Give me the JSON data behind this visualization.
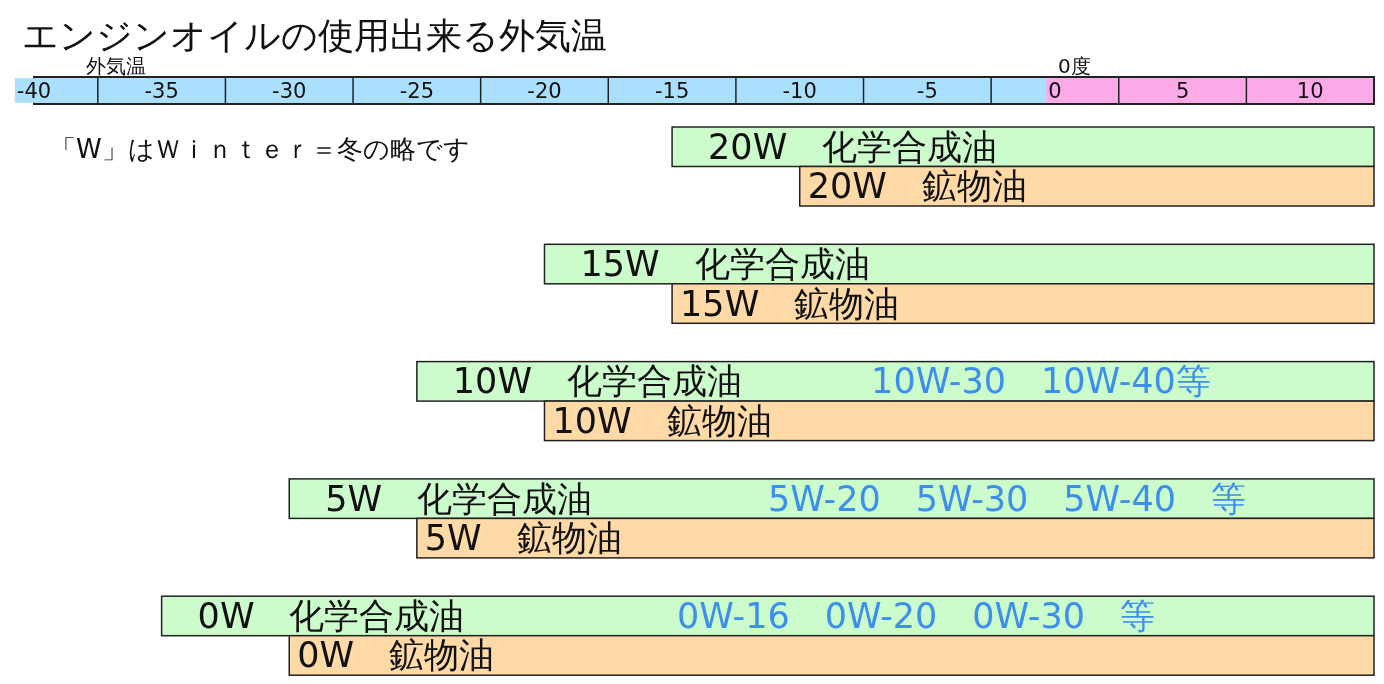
{
  "chart_data": {
    "type": "bar",
    "orientation": "horizontal",
    "title": "エンジンオイルの使用出来る外気温",
    "xlabel": "外気温",
    "categories": [
      "20W　化学合成油",
      "20W　鉱物油",
      "15W　化学合成油",
      "15W　鉱物油",
      "10W　化学合成油",
      "10W　鉱物油",
      "5W　化学合成油",
      "5W　鉱物油",
      "0W　化学合成油",
      "0W　鉱物油"
    ],
    "base": [
      -15,
      -10,
      -20,
      -15,
      -25,
      -20,
      -30,
      -25,
      -35,
      -30
    ],
    "values": [
      27.5,
      22.5,
      32.5,
      27.5,
      37.5,
      32.5,
      42.5,
      37.5,
      47.5,
      42.5
    ],
    "colors": [
      "#ccfccc",
      "#ffd9a6",
      "#ccfccc",
      "#ffd9a6",
      "#ccfccc",
      "#ffd9a6",
      "#ccfccc",
      "#ffd9a6",
      "#ccfccc",
      "#ffd9a6"
    ],
    "xlim": [
      -40,
      12.5
    ],
    "xticks": [
      -40,
      -35,
      -30,
      -25,
      -20,
      -15,
      -10,
      -5,
      0,
      5,
      10
    ],
    "annotations": [
      "「W」はＷｉｎｔｅｒ＝冬の略です",
      "0度",
      "10W-30　10W-40等",
      "5W-20　5W-30　5W-40　等",
      "0W-16　0W-20　0W-30　等"
    ]
  }
}
